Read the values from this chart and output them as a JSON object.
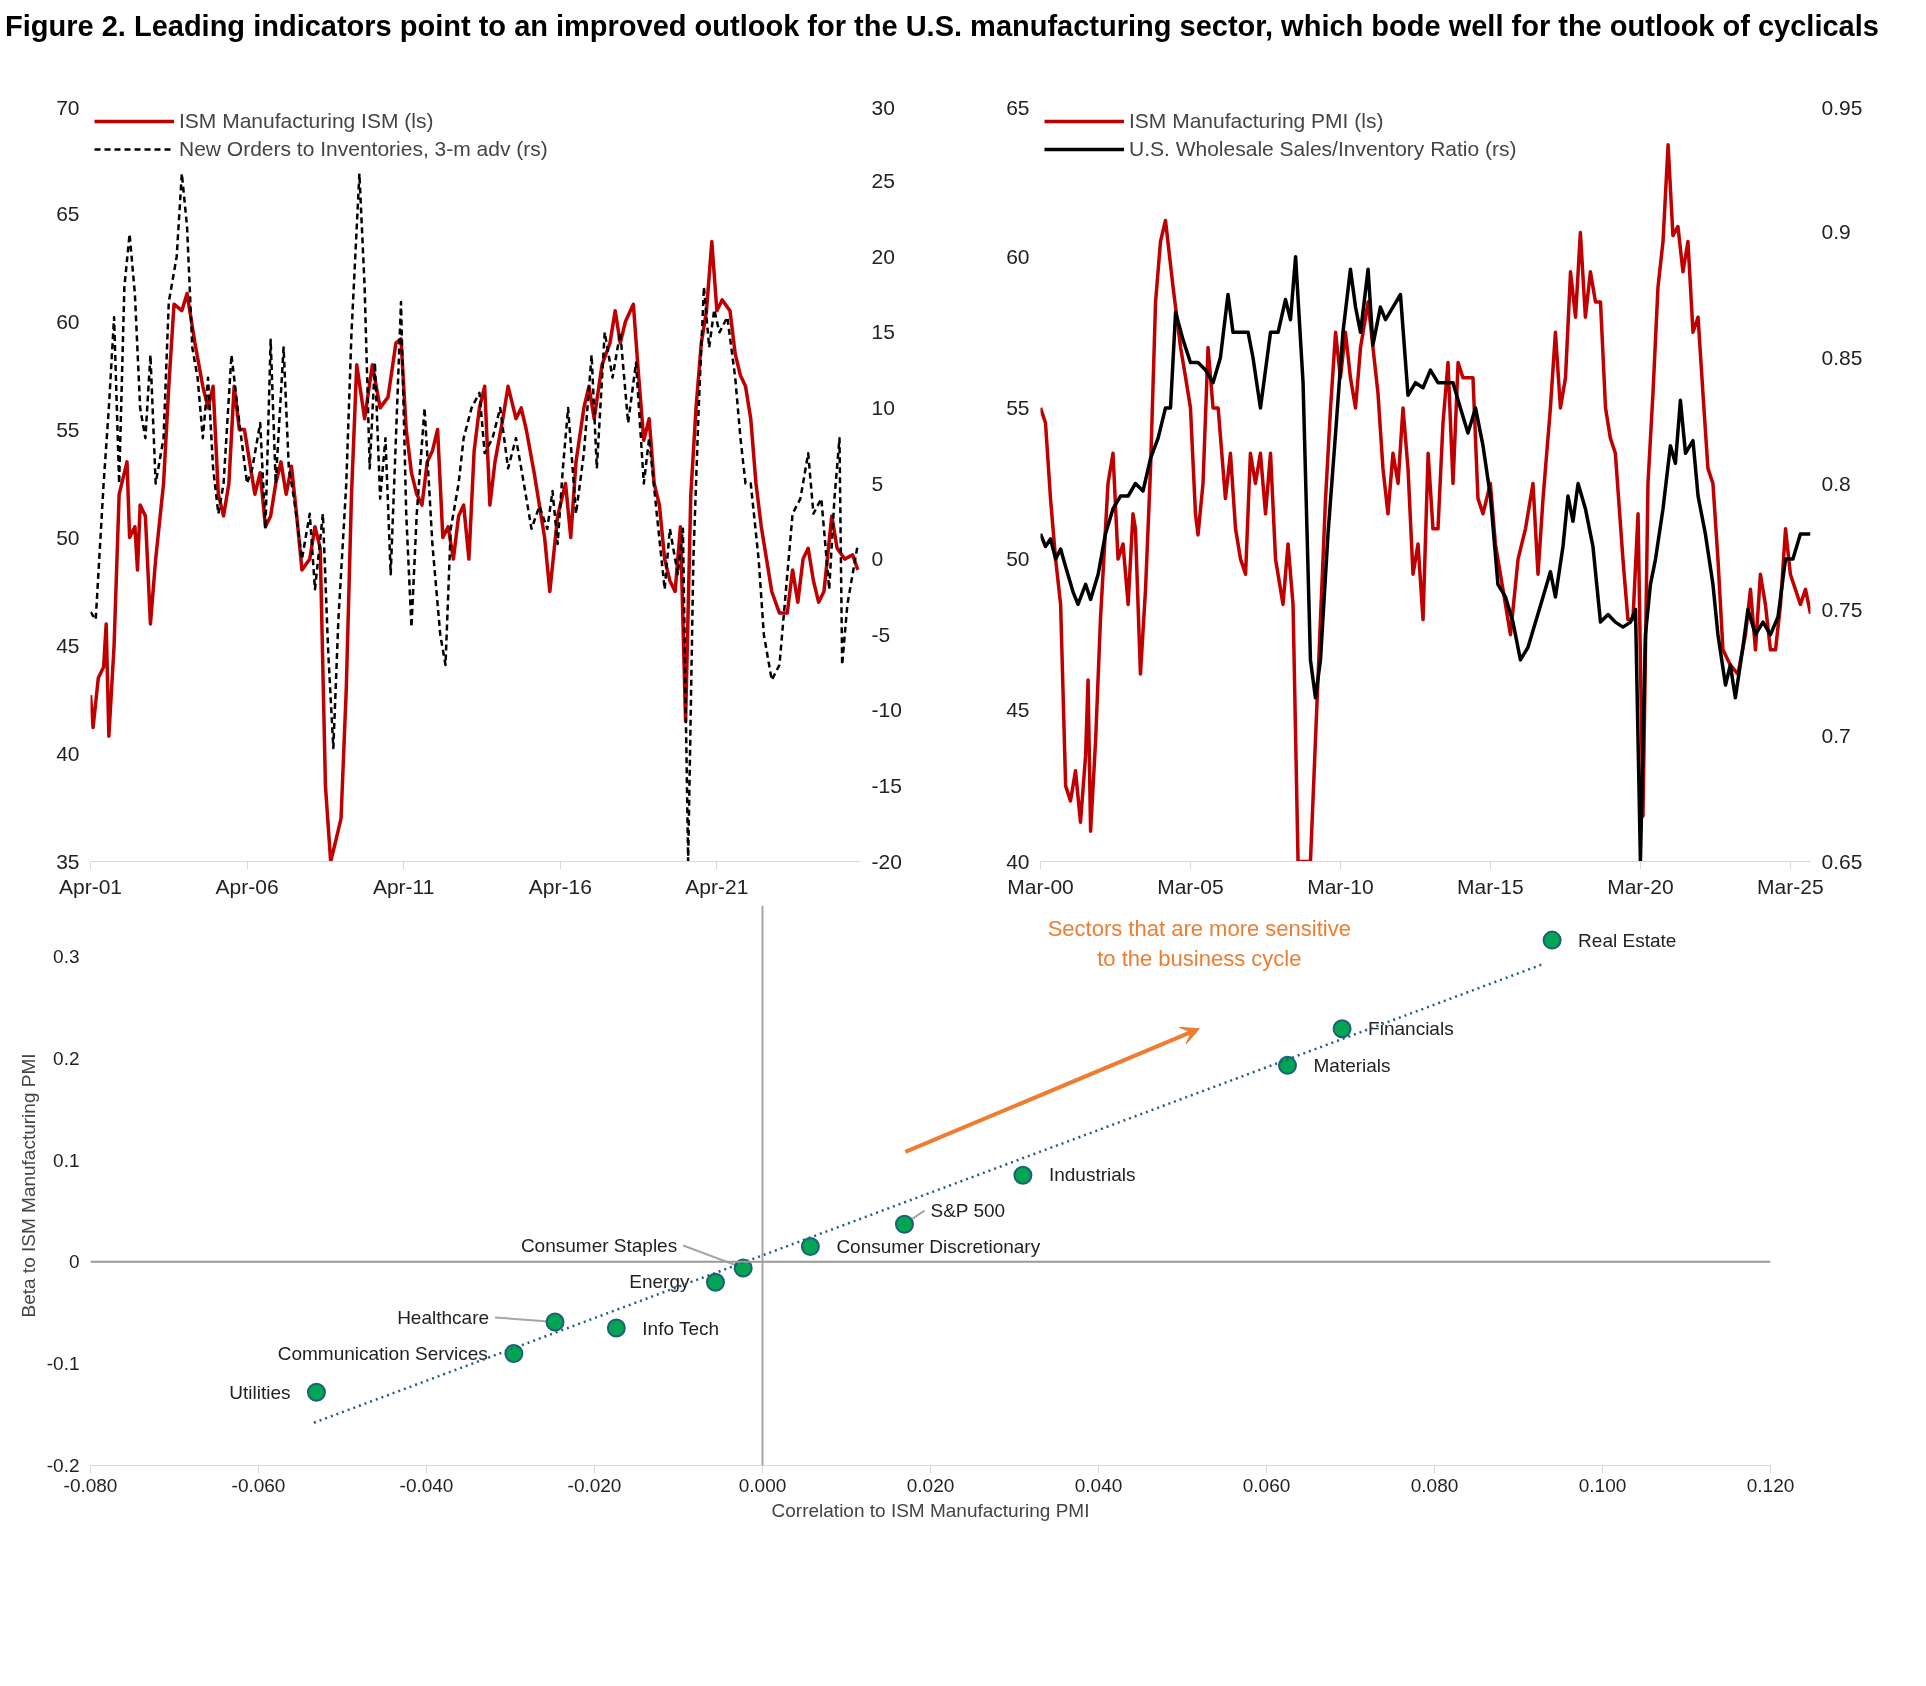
{
  "chart_data": [
    {
      "type": "line",
      "title": "Figure 2. Leading indicators point to an improved outlook for the U.S. manufacturing sector, which bode well for the outlook of cyclicals",
      "legend": "top left",
      "grid": false,
      "xlim": [
        "2001-04",
        "2025-11"
      ],
      "xticks": [
        {
          "value": "2001-04",
          "label": "Apr-01"
        },
        {
          "value": "2006-04",
          "label": "Apr-06"
        },
        {
          "value": "2011-04",
          "label": "Apr-11"
        },
        {
          "value": "2016-04",
          "label": "Apr-16"
        },
        {
          "value": "2021-04",
          "label": "Apr-21"
        }
      ],
      "ylim": [
        35,
        70
      ],
      "yticks": [
        35,
        40,
        45,
        50,
        55,
        60,
        65,
        70
      ],
      "y2lim": [
        -20,
        30
      ],
      "y2ticks": [
        -20,
        -15,
        -10,
        -5,
        0,
        5,
        10,
        15,
        20,
        25,
        30
      ],
      "series": [
        {
          "name": "ISM Manufacturing ISM (ls)",
          "color": "#c00000",
          "line_style": "solid",
          "x": [
            "2001-04",
            "2001-05",
            "2001-07",
            "2001-09",
            "2001-10",
            "2001-11",
            "2002-01",
            "2002-03",
            "2002-06",
            "2002-07",
            "2002-09",
            "2002-10",
            "2002-11",
            "2003-01",
            "2003-03",
            "2003-05",
            "2003-08",
            "2003-10",
            "2003-12",
            "2004-03",
            "2004-05",
            "2004-08",
            "2004-11",
            "2005-01",
            "2005-03",
            "2005-05",
            "2005-07",
            "2005-09",
            "2005-11",
            "2006-01",
            "2006-03",
            "2006-05",
            "2006-07",
            "2006-09",
            "2006-11",
            "2007-01",
            "2007-03",
            "2007-05",
            "2007-07",
            "2007-09",
            "2007-11",
            "2008-01",
            "2008-04",
            "2008-06",
            "2008-08",
            "2008-10",
            "2008-12",
            "2009-02",
            "2009-04",
            "2009-06",
            "2009-08",
            "2009-10",
            "2010-01",
            "2010-04",
            "2010-07",
            "2010-10",
            "2011-01",
            "2011-03",
            "2011-05",
            "2011-07",
            "2011-09",
            "2011-11",
            "2012-01",
            "2012-03",
            "2012-05",
            "2012-07",
            "2012-09",
            "2012-11",
            "2013-01",
            "2013-03",
            "2013-05",
            "2013-07",
            "2013-09",
            "2013-11",
            "2014-01",
            "2014-03",
            "2014-06",
            "2014-08",
            "2014-11",
            "2015-01",
            "2015-03",
            "2015-06",
            "2015-08",
            "2015-10",
            "2015-12",
            "2016-03",
            "2016-06",
            "2016-08",
            "2016-10",
            "2017-01",
            "2017-03",
            "2017-05",
            "2017-08",
            "2017-11",
            "2018-01",
            "2018-03",
            "2018-05",
            "2018-08",
            "2018-10",
            "2018-12",
            "2019-02",
            "2019-04",
            "2019-06",
            "2019-08",
            "2019-10",
            "2019-12",
            "2020-02",
            "2020-04",
            "2020-06",
            "2020-08",
            "2020-10",
            "2020-12",
            "2021-02",
            "2021-04",
            "2021-06",
            "2021-09",
            "2021-11",
            "2022-01",
            "2022-03",
            "2022-05",
            "2022-07",
            "2022-09",
            "2022-11",
            "2023-01",
            "2023-04",
            "2023-07",
            "2023-09",
            "2023-11",
            "2024-01",
            "2024-03",
            "2024-05",
            "2024-07",
            "2024-09",
            "2024-12",
            "2025-02",
            "2025-05",
            "2025-08",
            "2025-10"
          ],
          "values": [
            42.7,
            41.2,
            43.5,
            44,
            46,
            40.8,
            45,
            52,
            53.5,
            50,
            50.5,
            48.5,
            51.5,
            51,
            46,
            49,
            52.5,
            57,
            60.8,
            60.5,
            61.3,
            59,
            57,
            56,
            57,
            52,
            51,
            52.5,
            57,
            55,
            55,
            53.5,
            52,
            53,
            50.5,
            51,
            52.5,
            53.5,
            52,
            53.3,
            51,
            48.5,
            49,
            50.5,
            49.5,
            38.5,
            35,
            36,
            37,
            43,
            52,
            58,
            55.5,
            58,
            56,
            56.5,
            59,
            59.2,
            55,
            53,
            52,
            51.5,
            53.5,
            54,
            55,
            50,
            50.5,
            49,
            51,
            51.5,
            49,
            54,
            56,
            57,
            51.5,
            53.5,
            55.5,
            57,
            55.5,
            56,
            55,
            53,
            51.5,
            50,
            47.5,
            51,
            52.5,
            50,
            53.5,
            56,
            57,
            55.5,
            58,
            59,
            60.5,
            59,
            60,
            60.8,
            57.5,
            54.5,
            55.5,
            52.5,
            51.5,
            49,
            48,
            47.5,
            50.5,
            41.5,
            52,
            56,
            59,
            60.5,
            63.7,
            60.5,
            61,
            60.5,
            58.5,
            57.5,
            57,
            55.5,
            52.5,
            50.5,
            49,
            47.5,
            46.5,
            46.5,
            48.5,
            47,
            49,
            49.5,
            48,
            47,
            47.5,
            51,
            49.5,
            49,
            49.2,
            48.5
          ]
        },
        {
          "name": "New Orders to Inventories, 3-m adv (rs)",
          "color": "#000000",
          "line_style": "dashed",
          "axis": "y2",
          "x": [
            "2001-04",
            "2001-06",
            "2001-09",
            "2001-11",
            "2002-01",
            "2002-03",
            "2002-05",
            "2002-07",
            "2002-09",
            "2002-11",
            "2003-01",
            "2003-03",
            "2003-05",
            "2003-08",
            "2003-10",
            "2004-01",
            "2004-03",
            "2004-05",
            "2004-07",
            "2004-09",
            "2004-11",
            "2005-01",
            "2005-03",
            "2005-05",
            "2005-07",
            "2005-10",
            "2006-01",
            "2006-04",
            "2006-06",
            "2006-09",
            "2006-11",
            "2007-01",
            "2007-03",
            "2007-06",
            "2007-08",
            "2007-10",
            "2008-01",
            "2008-04",
            "2008-06",
            "2008-09",
            "2008-11",
            "2009-01",
            "2009-03",
            "2009-06",
            "2009-08",
            "2009-11",
            "2010-01",
            "2010-03",
            "2010-05",
            "2010-07",
            "2010-09",
            "2010-11",
            "2011-01",
            "2011-03",
            "2011-05",
            "2011-07",
            "2011-09",
            "2011-12",
            "2012-03",
            "2012-06",
            "2012-08",
            "2012-10",
            "2013-01",
            "2013-03",
            "2013-06",
            "2013-09",
            "2013-11",
            "2014-02",
            "2014-05",
            "2014-08",
            "2014-11",
            "2015-02",
            "2015-05",
            "2015-08",
            "2015-11",
            "2016-01",
            "2016-03",
            "2016-05",
            "2016-07",
            "2016-10",
            "2017-01",
            "2017-04",
            "2017-06",
            "2017-09",
            "2017-12",
            "2018-03",
            "2018-06",
            "2018-09",
            "2018-12",
            "2019-02",
            "2019-05",
            "2019-08",
            "2019-10",
            "2020-01",
            "2020-03",
            "2020-05",
            "2020-07",
            "2020-09",
            "2020-11",
            "2021-01",
            "2021-03",
            "2021-05",
            "2021-08",
            "2021-11",
            "2022-01",
            "2022-03",
            "2022-05",
            "2022-08",
            "2022-10",
            "2023-01",
            "2023-04",
            "2023-06",
            "2023-09",
            "2023-12",
            "2024-03",
            "2024-05",
            "2024-08",
            "2024-11",
            "2025-01",
            "2025-03",
            "2025-04",
            "2025-06",
            "2025-08",
            "2025-10"
          ],
          "values": [
            -3.5,
            -4,
            5,
            10,
            16,
            5,
            18,
            21.5,
            17.5,
            10,
            8,
            13.5,
            5,
            8,
            17,
            20,
            25.5,
            22,
            14,
            12,
            8,
            12,
            6,
            3,
            5,
            13.5,
            9,
            5,
            6,
            9,
            2,
            14.5,
            5,
            14,
            6,
            4,
            0,
            3,
            -2,
            3,
            -6,
            -12.5,
            -4,
            5,
            15,
            25.5,
            18,
            6,
            13,
            4,
            8,
            -1,
            8,
            17,
            3,
            -4.5,
            3,
            10,
            1,
            -5,
            -7,
            2,
            5,
            8,
            10,
            11,
            7,
            8,
            10,
            6,
            8,
            5,
            2,
            3.5,
            2,
            4.5,
            1,
            6,
            10,
            3,
            7,
            13.5,
            6,
            15,
            12,
            15,
            9,
            13,
            5,
            8,
            3,
            -2,
            2,
            -1,
            2,
            -20,
            0,
            10,
            18,
            14,
            16.5,
            15,
            16,
            12,
            8,
            5,
            5,
            0,
            -5,
            -8,
            -7,
            -3,
            3,
            4,
            7,
            3,
            4,
            -2,
            4,
            8,
            -7,
            -3,
            -1,
            1
          ]
        }
      ]
    },
    {
      "type": "line",
      "legend": "top left",
      "grid": false,
      "xlim": [
        "2000-03",
        "2025-11"
      ],
      "xticks": [
        {
          "value": "2000-03",
          "label": "Mar-00"
        },
        {
          "value": "2005-03",
          "label": "Mar-05"
        },
        {
          "value": "2010-03",
          "label": "Mar-10"
        },
        {
          "value": "2015-03",
          "label": "Mar-15"
        },
        {
          "value": "2020-03",
          "label": "Mar-20"
        },
        {
          "value": "2025-03",
          "label": "Mar-25"
        }
      ],
      "ylim": [
        40,
        65
      ],
      "yticks": [
        40,
        45,
        50,
        55,
        60,
        65
      ],
      "y2lim": [
        0.65,
        0.95
      ],
      "y2ticks": [
        0.65,
        0.7,
        0.75,
        0.8,
        0.85,
        0.9,
        0.95
      ],
      "series": [
        {
          "name": "ISM Manufacturing PMI (ls)",
          "color": "#c00000",
          "line_style": "solid",
          "x": [
            "2000-03",
            "2000-05",
            "2000-07",
            "2000-09",
            "2000-11",
            "2001-01",
            "2001-03",
            "2001-05",
            "2001-07",
            "2001-09",
            "2001-10",
            "2001-11",
            "2002-01",
            "2002-03",
            "2002-06",
            "2002-08",
            "2002-10",
            "2002-12",
            "2003-02",
            "2003-04",
            "2003-05",
            "2003-07",
            "2003-09",
            "2003-11",
            "2004-01",
            "2004-03",
            "2004-05",
            "2004-08",
            "2004-11",
            "2005-01",
            "2005-03",
            "2005-05",
            "2005-06",
            "2005-08",
            "2005-10",
            "2005-12",
            "2006-02",
            "2006-05",
            "2006-07",
            "2006-09",
            "2006-11",
            "2007-01",
            "2007-03",
            "2007-05",
            "2007-07",
            "2007-09",
            "2007-11",
            "2008-01",
            "2008-04",
            "2008-06",
            "2008-08",
            "2008-10",
            "2008-11",
            "2009-01",
            "2009-03",
            "2009-05",
            "2009-07",
            "2009-09",
            "2009-11",
            "2010-01",
            "2010-03",
            "2010-05",
            "2010-07",
            "2010-09",
            "2010-11",
            "2011-02",
            "2011-04",
            "2011-06",
            "2011-08",
            "2011-10",
            "2011-12",
            "2012-02",
            "2012-04",
            "2012-06",
            "2012-08",
            "2012-10",
            "2012-12",
            "2013-02",
            "2013-04",
            "2013-06",
            "2013-08",
            "2013-10",
            "2013-12",
            "2014-02",
            "2014-04",
            "2014-06",
            "2014-08",
            "2014-10",
            "2014-12",
            "2015-03",
            "2015-05",
            "2015-08",
            "2015-11",
            "2016-02",
            "2016-05",
            "2016-08",
            "2016-10",
            "2016-12",
            "2017-03",
            "2017-05",
            "2017-07",
            "2017-09",
            "2017-11",
            "2018-01",
            "2018-03",
            "2018-05",
            "2018-07",
            "2018-09",
            "2018-11",
            "2019-01",
            "2019-03",
            "2019-05",
            "2019-08",
            "2019-10",
            "2019-12",
            "2020-02",
            "2020-04",
            "2020-06",
            "2020-08",
            "2020-10",
            "2020-12",
            "2021-02",
            "2021-04",
            "2021-06",
            "2021-08",
            "2021-10",
            "2021-12",
            "2022-02",
            "2022-04",
            "2022-06",
            "2022-08",
            "2022-10",
            "2022-12",
            "2023-03",
            "2023-06",
            "2023-09",
            "2023-11",
            "2024-01",
            "2024-03",
            "2024-05",
            "2024-07",
            "2024-09",
            "2024-11",
            "2025-01",
            "2025-03",
            "2025-05",
            "2025-07",
            "2025-09",
            "2025-11"
          ],
          "values": [
            55,
            54.5,
            52,
            50,
            48.5,
            42.5,
            42,
            43,
            41.3,
            43.5,
            46,
            41,
            44,
            48,
            52.5,
            53.5,
            50,
            50.5,
            48.5,
            51.5,
            51,
            46.2,
            49,
            53,
            58.5,
            60.5,
            61.2,
            59,
            57,
            56,
            55,
            51.5,
            50.8,
            52.5,
            57,
            55,
            55,
            52,
            53.5,
            51,
            50,
            49.5,
            53.5,
            52.5,
            53.5,
            51.5,
            53.5,
            50,
            48.5,
            50.5,
            48.5,
            40,
            40,
            40,
            40,
            44,
            48,
            52,
            55,
            57.5,
            56,
            57.5,
            56,
            55,
            57,
            58.5,
            57,
            55.5,
            53,
            51.5,
            53.5,
            52.5,
            55,
            53,
            49.5,
            50.5,
            48,
            53.5,
            51,
            51,
            54.5,
            56.5,
            52.5,
            56.5,
            56,
            56,
            56,
            52,
            51.5,
            52.5,
            50.5,
            49,
            47.5,
            50,
            51,
            52.5,
            49.5,
            52,
            55,
            57.5,
            55,
            56,
            59.5,
            58,
            60.8,
            58,
            59.5,
            58.5,
            58.5,
            55,
            54,
            53.5,
            50,
            48,
            48,
            51.5,
            41.5,
            52.5,
            55.5,
            59,
            60.5,
            63.7,
            60.7,
            61,
            59.5,
            60.5,
            57.5,
            58,
            55.5,
            53,
            52.5,
            50,
            47,
            46.5,
            46.2,
            47.5,
            49,
            47,
            49.5,
            48.5,
            47,
            47,
            48.5,
            51,
            49.5,
            49,
            48.5,
            49,
            48.2
          ]
        },
        {
          "name": "U.S. Wholesale Sales/Inventory Ratio (rs)",
          "color": "#000000",
          "line_style": "solid",
          "axis": "y2",
          "x": [
            "2000-03",
            "2000-05",
            "2000-07",
            "2000-09",
            "2000-11",
            "2001-01",
            "2001-04",
            "2001-06",
            "2001-09",
            "2001-11",
            "2002-02",
            "2002-05",
            "2002-08",
            "2002-11",
            "2003-02",
            "2003-05",
            "2003-08",
            "2003-11",
            "2004-02",
            "2004-05",
            "2004-07",
            "2004-09",
            "2004-12",
            "2005-03",
            "2005-06",
            "2005-09",
            "2005-12",
            "2006-03",
            "2006-06",
            "2006-08",
            "2006-11",
            "2007-02",
            "2007-04",
            "2007-07",
            "2007-09",
            "2007-11",
            "2008-02",
            "2008-05",
            "2008-07",
            "2008-09",
            "2008-12",
            "2009-03",
            "2009-05",
            "2009-07",
            "2009-10",
            "2010-01",
            "2010-04",
            "2010-07",
            "2010-09",
            "2010-11",
            "2011-02",
            "2011-04",
            "2011-07",
            "2011-09",
            "2011-12",
            "2012-03",
            "2012-06",
            "2012-09",
            "2012-12",
            "2013-03",
            "2013-06",
            "2013-09",
            "2013-12",
            "2014-03",
            "2014-06",
            "2014-09",
            "2014-12",
            "2015-03",
            "2015-06",
            "2015-09",
            "2015-12",
            "2016-03",
            "2016-06",
            "2016-09",
            "2016-12",
            "2017-03",
            "2017-05",
            "2017-08",
            "2017-10",
            "2017-12",
            "2018-02",
            "2018-05",
            "2018-08",
            "2018-11",
            "2019-02",
            "2019-05",
            "2019-08",
            "2019-11",
            "2020-01",
            "2020-03",
            "2020-05",
            "2020-07",
            "2020-09",
            "2020-12",
            "2021-03",
            "2021-05",
            "2021-07",
            "2021-09",
            "2021-12",
            "2022-02",
            "2022-05",
            "2022-08",
            "2022-10",
            "2023-01",
            "2023-03",
            "2023-05",
            "2023-08",
            "2023-10",
            "2024-01",
            "2024-04",
            "2024-07",
            "2024-10",
            "2025-01",
            "2025-04",
            "2025-07",
            "2025-11"
          ],
          "values": [
            0.78,
            0.775,
            0.778,
            0.77,
            0.774,
            0.767,
            0.757,
            0.752,
            0.76,
            0.754,
            0.764,
            0.78,
            0.79,
            0.795,
            0.795,
            0.8,
            0.797,
            0.81,
            0.818,
            0.83,
            0.83,
            0.868,
            0.857,
            0.848,
            0.848,
            0.845,
            0.84,
            0.85,
            0.875,
            0.86,
            0.86,
            0.86,
            0.85,
            0.83,
            0.845,
            0.86,
            0.86,
            0.873,
            0.865,
            0.89,
            0.84,
            0.73,
            0.715,
            0.73,
            0.78,
            0.82,
            0.86,
            0.885,
            0.87,
            0.86,
            0.885,
            0.855,
            0.87,
            0.865,
            0.87,
            0.875,
            0.835,
            0.84,
            0.838,
            0.845,
            0.84,
            0.84,
            0.84,
            0.83,
            0.82,
            0.83,
            0.815,
            0.795,
            0.76,
            0.755,
            0.745,
            0.73,
            0.735,
            0.745,
            0.755,
            0.765,
            0.755,
            0.775,
            0.795,
            0.785,
            0.8,
            0.79,
            0.775,
            0.745,
            0.748,
            0.745,
            0.743,
            0.745,
            0.75,
            0.65,
            0.74,
            0.76,
            0.77,
            0.79,
            0.815,
            0.808,
            0.833,
            0.812,
            0.817,
            0.795,
            0.78,
            0.76,
            0.74,
            0.72,
            0.728,
            0.715,
            0.735,
            0.75,
            0.74,
            0.745,
            0.74,
            0.747,
            0.77,
            0.77,
            0.78,
            0.78
          ]
        }
      ]
    },
    {
      "type": "scatter",
      "xlabel": "Correlation to ISM Manufacturing PMI",
      "ylabel": "Beta to ISM Manufacturing PMI",
      "grid": false,
      "legend": false,
      "annotations": [
        "Sectors that are more sensitive\nto the business cycle"
      ],
      "xlim": [
        -0.08,
        0.12
      ],
      "xticks": [
        {
          "value": -0.08,
          "label": "-0.080"
        },
        {
          "value": -0.06,
          "label": "-0.060"
        },
        {
          "value": -0.04,
          "label": "-0.040"
        },
        {
          "value": -0.02,
          "label": "-0.020"
        },
        {
          "value": 0,
          "label": "0.000"
        },
        {
          "value": 0.02,
          "label": "0.020"
        },
        {
          "value": 0.04,
          "label": "0.040"
        },
        {
          "value": 0.06,
          "label": "0.060"
        },
        {
          "value": 0.08,
          "label": "0.080"
        },
        {
          "value": 0.1,
          "label": "0.100"
        },
        {
          "value": 0.12,
          "label": "0.120"
        }
      ],
      "ylim": [
        -0.2,
        0.35
      ],
      "yticks": [
        -0.2,
        -0.1,
        0,
        0.1,
        0.2,
        0.3
      ],
      "ref_lines": [
        {
          "axis": "x",
          "value": 0,
          "color": "#a6a6a6"
        },
        {
          "axis": "y",
          "value": 0,
          "color": "#999999"
        }
      ],
      "series": [
        {
          "type": "scatter",
          "color": "#00a651",
          "marker": "circle",
          "x": [
            0.094,
            0.069,
            0.0625,
            0.031,
            0.0169,
            0.0057,
            -0.0023,
            -0.0056,
            -0.0247,
            -0.0174,
            -0.0296,
            -0.0531
          ],
          "values": [
            0.316,
            0.229,
            0.193,
            0.085,
            0.037,
            0.015,
            -0.006,
            -0.02,
            -0.059,
            -0.065,
            -0.09,
            -0.128
          ],
          "value_labels": [
            "Real Estate",
            "Financials",
            "Materials",
            "Industrials",
            "S&P 500",
            "Consumer Discretionary",
            "Consumer Staples",
            "Energy",
            "Healthcare",
            "Info Tech",
            "Communication Services",
            "Utilities"
          ]
        },
        {
          "type": "line",
          "color": "#1f5f7a",
          "line_style": "dotted",
          "x": [
            -0.0534,
            0.0931
          ],
          "values": [
            -0.158,
            0.293
          ]
        }
      ]
    }
  ]
}
